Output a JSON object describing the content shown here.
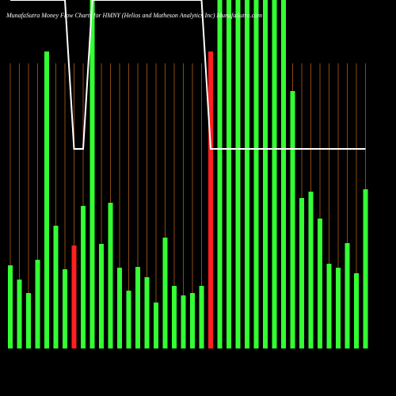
{
  "chart_data": {
    "type": "bar",
    "title": "MunafaSutra  Money Flow  Charts for HMNY  (Helios and Matheson Analytics Inc) MunafaSutra.com",
    "values": [
      105,
      87,
      70,
      112,
      375,
      155,
      100,
      130,
      180,
      440,
      132,
      184,
      102,
      73,
      103,
      90,
      58,
      140,
      79,
      67,
      70,
      79,
      375,
      440,
      440,
      440,
      440,
      440,
      440,
      440,
      440,
      325,
      190,
      198,
      164,
      107,
      102,
      133,
      95,
      201
    ],
    "colors": [
      "#33ff33",
      "#33ff33",
      "#33ff33",
      "#33ff33",
      "#33ff33",
      "#33ff33",
      "#33ff33",
      "#ff2020",
      "#33ff33",
      "#33ff33",
      "#33ff33",
      "#33ff33",
      "#33ff33",
      "#33ff33",
      "#33ff33",
      "#33ff33",
      "#33ff33",
      "#33ff33",
      "#33ff33",
      "#33ff33",
      "#33ff33",
      "#33ff33",
      "#ff2020",
      "#33ff33",
      "#33ff33",
      "#33ff33",
      "#33ff33",
      "#33ff33",
      "#33ff33",
      "#33ff33",
      "#33ff33",
      "#33ff33",
      "#33ff33",
      "#33ff33",
      "#33ff33",
      "#33ff33",
      "#33ff33",
      "#33ff33",
      "#33ff33",
      "#33ff33"
    ],
    "line": {
      "color": "#ffffff",
      "values": [
        440,
        440,
        440,
        440,
        440,
        440,
        440,
        252,
        252,
        440,
        440,
        440,
        440,
        440,
        440,
        440,
        440,
        440,
        440,
        440,
        440,
        440,
        252,
        252,
        252,
        252,
        252,
        252,
        252,
        252,
        252,
        252,
        252,
        252,
        252,
        252,
        252,
        252,
        252,
        252
      ]
    },
    "ylim": [
      0,
      440
    ],
    "grid": true,
    "grid_color": "#8b4a12"
  }
}
